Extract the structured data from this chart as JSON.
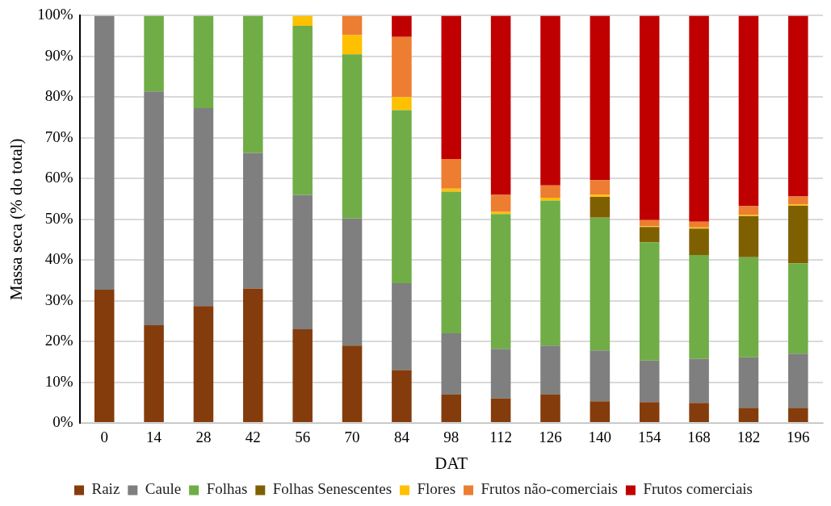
{
  "chart_data": {
    "type": "bar",
    "stacked": true,
    "xlabel": "DAT",
    "ylabel": "Massa seca (% do total)",
    "categories": [
      "0",
      "14",
      "28",
      "42",
      "56",
      "70",
      "84",
      "98",
      "112",
      "126",
      "140",
      "154",
      "168",
      "182",
      "196"
    ],
    "ylim": [
      0,
      100
    ],
    "yticks": [
      {
        "value": 0,
        "label": "0%"
      },
      {
        "value": 10,
        "label": "10%"
      },
      {
        "value": 20,
        "label": "20%"
      },
      {
        "value": 30,
        "label": "30%"
      },
      {
        "value": 40,
        "label": "40%"
      },
      {
        "value": 50,
        "label": "50%"
      },
      {
        "value": 60,
        "label": "60%"
      },
      {
        "value": 70,
        "label": "70%"
      },
      {
        "value": 80,
        "label": "80%"
      },
      {
        "value": 90,
        "label": "90%"
      },
      {
        "value": 100,
        "label": "100%"
      }
    ],
    "grid": "y",
    "legend": "bottom",
    "series": [
      {
        "name": "Raiz",
        "color": "#843c0c",
        "values": [
          32.7,
          24,
          28.7,
          33,
          23,
          19,
          13,
          7,
          6,
          7,
          5.3,
          5.1,
          4.9,
          3.7,
          3.7
        ]
      },
      {
        "name": "Caule",
        "color": "#7f7f7f",
        "values": [
          67.3,
          57.4,
          48.6,
          33.3,
          33,
          31.2,
          21.3,
          15,
          12.2,
          12,
          12.5,
          10.2,
          10.8,
          12.4,
          13.3
        ]
      },
      {
        "name": "Folhas",
        "color": "#70ad47",
        "values": [
          0,
          18.6,
          22.7,
          33.7,
          41.5,
          40.3,
          42.5,
          34.8,
          33.1,
          35.6,
          32.6,
          29,
          25.5,
          24.6,
          22.2
        ]
      },
      {
        "name": "Folhas Senescentes",
        "color": "#7f6000",
        "values": [
          0,
          0,
          0,
          0,
          0,
          0,
          0,
          0,
          0,
          0,
          5.1,
          3.8,
          6.5,
          10.1,
          14.1
        ]
      },
      {
        "name": "Flores",
        "color": "#ffc000",
        "values": [
          0,
          0,
          0,
          0,
          2.5,
          4.7,
          3.2,
          0.7,
          0.5,
          0.7,
          0.5,
          0.2,
          0.3,
          0.3,
          0.3
        ]
      },
      {
        "name": "Frutos não-comerciais",
        "color": "#ed7d31",
        "values": [
          0,
          0,
          0,
          0,
          0,
          4.8,
          14.8,
          7.3,
          4.2,
          3,
          3.6,
          1.5,
          1.4,
          2.1,
          2
        ]
      },
      {
        "name": "Frutos comerciais",
        "color": "#c00000",
        "values": [
          0,
          0,
          0,
          0,
          0,
          0,
          5.2,
          35.2,
          44,
          41.7,
          40.4,
          50.2,
          50.6,
          46.8,
          44.4
        ]
      }
    ]
  }
}
